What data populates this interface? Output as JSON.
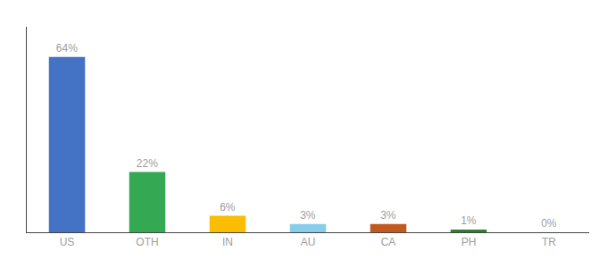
{
  "chart_data": {
    "type": "bar",
    "categories": [
      "US",
      "OTH",
      "IN",
      "AU",
      "CA",
      "PH",
      "TR"
    ],
    "values": [
      64,
      22,
      6,
      3,
      3,
      1,
      0
    ],
    "value_labels": [
      "64%",
      "22%",
      "6%",
      "3%",
      "3%",
      "1%",
      "0%"
    ],
    "data_labels": true,
    "colors": [
      "#4472C4",
      "#34A853",
      "#FBBC04",
      "#87CEEB",
      "#C05A20",
      "#2E7D32",
      "#BDBDBD"
    ],
    "ylim": [
      0,
      75
    ],
    "tick_labels": "x",
    "grid": false
  }
}
